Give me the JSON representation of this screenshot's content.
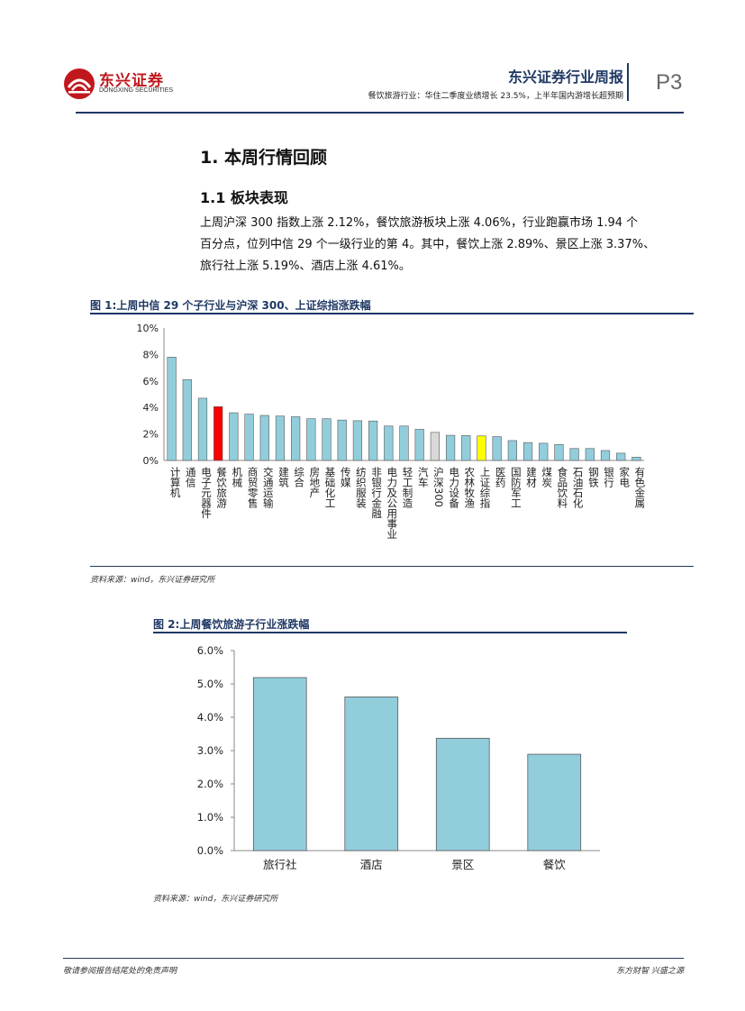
{
  "header": {
    "logo_cn": "东兴证券",
    "logo_en": "DONGXING SECURITIES",
    "title": "东兴证券行业周报",
    "subtitle": "餐饮旅游行业：华住二季度业绩增长 23.5%，上半年国内游增长超预期",
    "page": "P3",
    "colors": {
      "navy": "#1f3864",
      "red": "#c0171d"
    }
  },
  "content": {
    "h1": "1. 本周行情回顾",
    "h2": "1.1 板块表现",
    "para_lines": [
      "上周沪深 300 指数上涨 2.12%，餐饮旅游板块上涨 4.06%，行业跑赢市场 1.94 个",
      "百分点，位列中信 29 个一级行业的第 4。其中，餐饮上涨 2.89%、景区上涨 3.37%、",
      "旅行社上涨 5.19%、酒店上涨 4.61%。"
    ]
  },
  "figure1": {
    "caption": "图 1:上周中信 29 个子行业与沪深 300、上证综指涨跌幅",
    "source": "资料来源：wind，东兴证券研究所"
  },
  "figure2": {
    "caption": "图 2:上周餐饮旅游子行业涨跌幅",
    "source": "资料来源：wind，东兴证券研究所"
  },
  "footer": {
    "left": "敬请参阅报告结尾处的免责声明",
    "right": "东方财智 兴盛之源"
  },
  "chart_data": [
    {
      "type": "bar",
      "categories": [
        "计算机",
        "通信",
        "电子元器件",
        "餐饮旅游",
        "机械",
        "商贸零售",
        "交通运输",
        "建筑",
        "综合",
        "房地产",
        "基础化工",
        "传媒",
        "纺织服装",
        "非银行金融",
        "电力及公用事业",
        "轻工制造",
        "汽车",
        "沪深300",
        "电力设备",
        "农林牧渔",
        "上证综指",
        "医药",
        "国防军工",
        "建材",
        "煤炭",
        "食品饮料",
        "石油石化",
        "钢铁",
        "银行",
        "家电",
        "有色金属"
      ],
      "values": [
        7.8,
        6.1,
        4.7,
        4.06,
        3.6,
        3.5,
        3.4,
        3.35,
        3.3,
        3.15,
        3.15,
        3.05,
        3.0,
        2.98,
        2.6,
        2.6,
        2.35,
        2.12,
        1.9,
        1.88,
        1.85,
        1.8,
        1.5,
        1.35,
        1.3,
        1.2,
        0.9,
        0.9,
        0.75,
        0.55,
        0.25
      ],
      "highlight": {
        "餐饮旅游": "#ff0000",
        "沪深300": "#d9d9d9",
        "上证综指": "#ffff00"
      },
      "bar_color": "#92cddc",
      "ylim": [
        0,
        10
      ],
      "yticks": [
        "0%",
        "2%",
        "4%",
        "6%",
        "8%",
        "10%"
      ],
      "grid": false
    },
    {
      "type": "bar",
      "categories": [
        "旅行社",
        "酒店",
        "景区",
        "餐饮"
      ],
      "values": [
        5.19,
        4.61,
        3.37,
        2.89
      ],
      "bar_color": "#92cddc",
      "ylim": [
        0,
        6
      ],
      "yticks": [
        "0.0%",
        "1.0%",
        "2.0%",
        "3.0%",
        "4.0%",
        "5.0%",
        "6.0%"
      ],
      "grid": false
    }
  ]
}
